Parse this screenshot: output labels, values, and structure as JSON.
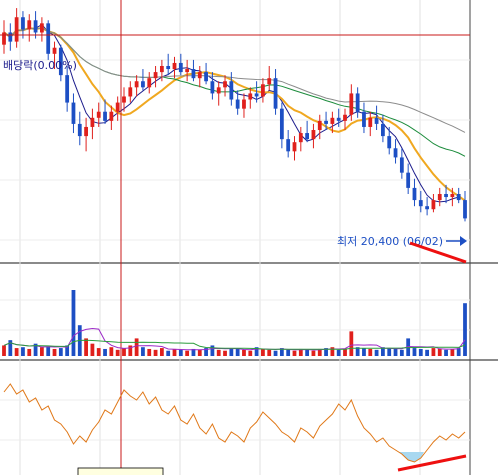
{
  "chart_data": [
    {
      "type": "candlestick",
      "panel": "price",
      "overlay_label": "배당락(0.00%)",
      "annotation": "최저 20,400 (06/02)",
      "low_value": 20400,
      "low_date": "06/02",
      "ylim": [
        19200,
        27600
      ],
      "up_color": "#e0201c",
      "down_color": "#1d4fc4",
      "series": [
        {
          "name": "",
          "kind": "ma-short",
          "color": "#1c1c8c"
        },
        {
          "name": "",
          "kind": "ma-mid",
          "color": "#f0a820"
        },
        {
          "name": "",
          "kind": "ma-long",
          "color": "#1c8c3c"
        },
        {
          "name": "",
          "kind": "ma-longest",
          "color": "#8c8c8c"
        }
      ],
      "ohlc": [
        [
          26200,
          27000,
          25900,
          26600
        ],
        [
          26600,
          26900,
          26000,
          26300
        ],
        [
          26300,
          27400,
          26100,
          27100
        ],
        [
          27100,
          27300,
          26400,
          26700
        ],
        [
          26700,
          27200,
          26300,
          27000
        ],
        [
          27000,
          27300,
          26400,
          26600
        ],
        [
          26600,
          27100,
          26300,
          26900
        ],
        [
          26900,
          27000,
          25700,
          25900
        ],
        [
          25900,
          26300,
          25400,
          26100
        ],
        [
          26100,
          26200,
          25000,
          25200
        ],
        [
          25200,
          25500,
          24000,
          24300
        ],
        [
          24300,
          24600,
          23300,
          23600
        ],
        [
          23600,
          24000,
          22900,
          23200
        ],
        [
          23200,
          23800,
          22700,
          23500
        ],
        [
          23500,
          24100,
          23100,
          23800
        ],
        [
          23800,
          24300,
          23500,
          24000
        ],
        [
          24000,
          24400,
          23600,
          23700
        ],
        [
          23700,
          24200,
          23400,
          24000
        ],
        [
          24000,
          24500,
          23700,
          24300
        ],
        [
          24300,
          24800,
          24000,
          24500
        ],
        [
          24500,
          25000,
          24300,
          24800
        ],
        [
          24800,
          25200,
          24500,
          25000
        ],
        [
          25000,
          25400,
          24700,
          24800
        ],
        [
          24800,
          25300,
          24600,
          25100
        ],
        [
          25100,
          25500,
          24800,
          25300
        ],
        [
          25300,
          25700,
          25000,
          25500
        ],
        [
          25500,
          25900,
          25200,
          25400
        ],
        [
          25400,
          25800,
          25100,
          25600
        ],
        [
          25600,
          25900,
          25200,
          25300
        ],
        [
          25300,
          25700,
          25000,
          25400
        ],
        [
          25400,
          25700,
          25000,
          25100
        ],
        [
          25100,
          25500,
          24800,
          25300
        ],
        [
          25300,
          25600,
          24900,
          25000
        ],
        [
          25000,
          25300,
          24400,
          24600
        ],
        [
          24600,
          25000,
          24200,
          24800
        ],
        [
          24800,
          25200,
          24500,
          25000
        ],
        [
          25000,
          25300,
          24200,
          24400
        ],
        [
          24400,
          24700,
          23900,
          24100
        ],
        [
          24100,
          24600,
          23800,
          24400
        ],
        [
          24400,
          24800,
          24100,
          24600
        ],
        [
          24600,
          25000,
          24300,
          24500
        ],
        [
          24500,
          25100,
          24300,
          24900
        ],
        [
          24900,
          25500,
          24700,
          25100
        ],
        [
          25100,
          25400,
          23900,
          24100
        ],
        [
          24100,
          24300,
          22800,
          23100
        ],
        [
          23100,
          23400,
          22500,
          22700
        ],
        [
          22700,
          23200,
          22400,
          23000
        ],
        [
          23000,
          23500,
          22700,
          23300
        ],
        [
          23300,
          23700,
          23000,
          23100
        ],
        [
          23100,
          23600,
          22800,
          23400
        ],
        [
          23400,
          23900,
          23100,
          23700
        ],
        [
          23700,
          24000,
          23400,
          23600
        ],
        [
          23600,
          24000,
          23300,
          23800
        ],
        [
          23800,
          24100,
          23500,
          23700
        ],
        [
          23700,
          24100,
          23400,
          23900
        ],
        [
          23900,
          24900,
          23700,
          24600
        ],
        [
          24600,
          24800,
          23800,
          24000
        ],
        [
          24000,
          24300,
          23300,
          23500
        ],
        [
          23500,
          24000,
          23200,
          23800
        ],
        [
          23800,
          24200,
          23400,
          23600
        ],
        [
          23600,
          23900,
          23000,
          23200
        ],
        [
          23200,
          23500,
          22600,
          22800
        ],
        [
          22800,
          23100,
          22300,
          22500
        ],
        [
          22500,
          22800,
          21800,
          22000
        ],
        [
          22000,
          22300,
          21300,
          21500
        ],
        [
          21500,
          21800,
          20900,
          21100
        ],
        [
          21100,
          21400,
          20700,
          20900
        ],
        [
          20900,
          21200,
          20600,
          20800
        ],
        [
          20800,
          21300,
          20700,
          21100
        ],
        [
          21100,
          21500,
          20900,
          21300
        ],
        [
          21300,
          21600,
          21000,
          21200
        ],
        [
          21200,
          21500,
          20900,
          21300
        ],
        [
          21300,
          21500,
          21000,
          21100
        ],
        [
          21100,
          21400,
          20400,
          20500
        ]
      ]
    },
    {
      "type": "bar",
      "panel": "volume",
      "ylim": [
        0,
        100
      ],
      "values": [
        12,
        18,
        9,
        10,
        8,
        14,
        10,
        11,
        8,
        9,
        12,
        75,
        35,
        20,
        14,
        9,
        8,
        10,
        7,
        9,
        12,
        20,
        10,
        8,
        7,
        9,
        6,
        8,
        7,
        6,
        8,
        7,
        9,
        12,
        7,
        6,
        8,
        9,
        7,
        6,
        10,
        8,
        7,
        6,
        9,
        7,
        6,
        8,
        7,
        6,
        8,
        9,
        10,
        7,
        8,
        28,
        10,
        9,
        8,
        7,
        10,
        9,
        8,
        7,
        20,
        9,
        8,
        7,
        9,
        8,
        7,
        8,
        9,
        60
      ]
    },
    {
      "type": "line",
      "panel": "oscillator",
      "ylim": [
        0,
        100
      ],
      "oversold_level": 20,
      "values": [
        80,
        88,
        78,
        82,
        70,
        74,
        62,
        66,
        52,
        48,
        40,
        28,
        36,
        30,
        42,
        50,
        62,
        58,
        70,
        82,
        76,
        72,
        80,
        68,
        75,
        62,
        58,
        66,
        52,
        48,
        58,
        44,
        38,
        48,
        34,
        30,
        40,
        36,
        30,
        44,
        50,
        60,
        54,
        48,
        40,
        36,
        30,
        44,
        40,
        34,
        46,
        52,
        58,
        68,
        62,
        72,
        56,
        44,
        38,
        30,
        34,
        26,
        22,
        18,
        12,
        10,
        14,
        22,
        30,
        36,
        32,
        38,
        34,
        40
      ]
    }
  ]
}
